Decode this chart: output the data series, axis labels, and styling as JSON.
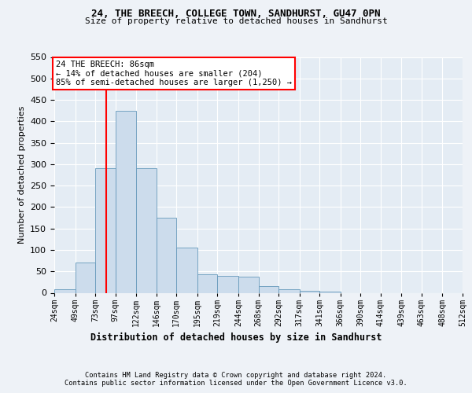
{
  "title1": "24, THE BREECH, COLLEGE TOWN, SANDHURST, GU47 0PN",
  "title2": "Size of property relative to detached houses in Sandhurst",
  "xlabel": "Distribution of detached houses by size in Sandhurst",
  "ylabel": "Number of detached properties",
  "bar_values": [
    8,
    70,
    290,
    425,
    290,
    175,
    105,
    43,
    40,
    38,
    16,
    8,
    5,
    2,
    0,
    0,
    0,
    0,
    0,
    0
  ],
  "bin_edges": [
    24,
    49,
    73,
    97,
    122,
    146,
    170,
    195,
    219,
    244,
    268,
    292,
    317,
    341,
    366,
    390,
    414,
    439,
    463,
    488,
    512
  ],
  "bar_color": "#ccdcec",
  "bar_edge_color": "#6699bb",
  "vline_x": 86,
  "vline_color": "red",
  "annotation_text": "24 THE BREECH: 86sqm\n← 14% of detached houses are smaller (204)\n85% of semi-detached houses are larger (1,250) →",
  "annotation_box_color": "white",
  "annotation_box_edge": "red",
  "ylim": [
    0,
    550
  ],
  "yticks": [
    0,
    50,
    100,
    150,
    200,
    250,
    300,
    350,
    400,
    450,
    500,
    550
  ],
  "footer1": "Contains HM Land Registry data © Crown copyright and database right 2024.",
  "footer2": "Contains public sector information licensed under the Open Government Licence v3.0.",
  "bg_color": "#eef2f7",
  "plot_bg_color": "#e4ecf4"
}
